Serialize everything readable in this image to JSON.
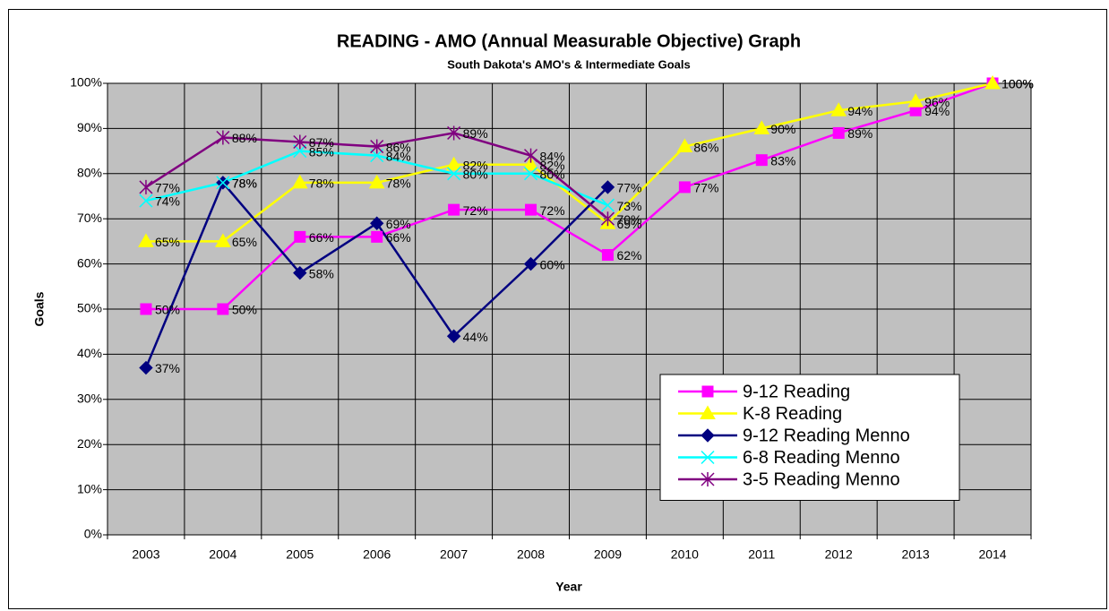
{
  "chart_data": {
    "type": "line",
    "title": "READING - AMO (Annual Measurable Objective) Graph",
    "subtitle": "South Dakota's AMO's & Intermediate Goals",
    "x_label": "Year",
    "y_label": "Goals",
    "categories": [
      "2003",
      "2004",
      "2005",
      "2006",
      "2007",
      "2008",
      "2009",
      "2010",
      "2011",
      "2012",
      "2013",
      "2014"
    ],
    "ylim": [
      0,
      100
    ],
    "yticks": [
      {
        "value": 0,
        "label": "0%"
      },
      {
        "value": 10,
        "label": "10%"
      },
      {
        "value": 20,
        "label": "20%"
      },
      {
        "value": 30,
        "label": "30%"
      },
      {
        "value": 40,
        "label": "40%"
      },
      {
        "value": 50,
        "label": "50%"
      },
      {
        "value": 60,
        "label": "60%"
      },
      {
        "value": 70,
        "label": "70%"
      },
      {
        "value": 80,
        "label": "80%"
      },
      {
        "value": 90,
        "label": "90%"
      },
      {
        "value": 100,
        "label": "100%"
      }
    ],
    "grid": true,
    "legend": "lower right",
    "series": [
      {
        "name": "9-12 Reading",
        "color": "#ff00ff",
        "marker": "square",
        "values": [
          50,
          50,
          66,
          66,
          72,
          72,
          62,
          77,
          83,
          89,
          94,
          100
        ],
        "value_labels": [
          "50%",
          "50%",
          "66%",
          "66%",
          "72%",
          "72%",
          "62%",
          "77%",
          "83%",
          "89%",
          "94%",
          "100%"
        ]
      },
      {
        "name": "K-8 Reading",
        "color": "#ffff00",
        "marker": "triangle",
        "values": [
          65,
          65,
          78,
          78,
          82,
          82,
          69,
          86,
          90,
          94,
          96,
          100
        ],
        "value_labels": [
          "65%",
          "65%",
          "78%",
          "78%",
          "82%",
          "82%",
          "69%",
          "86%",
          "90%",
          "94%",
          "96%",
          "100%"
        ]
      },
      {
        "name": "9-12 Reading Menno",
        "color": "#000080",
        "marker": "diamond",
        "values": [
          37,
          78,
          58,
          69,
          44,
          60,
          77,
          null,
          null,
          null,
          null,
          null
        ],
        "value_labels": [
          "37%",
          "78%",
          "58%",
          "69%",
          "44%",
          "60%",
          "77%",
          null,
          null,
          null,
          null,
          null
        ]
      },
      {
        "name": "6-8 Reading Menno",
        "color": "#00ffff",
        "marker": "x",
        "values": [
          74,
          78,
          85,
          84,
          80,
          80,
          73,
          null,
          null,
          null,
          null,
          null
        ],
        "value_labels": [
          "74%",
          "78%",
          "85%",
          "84%",
          "80%",
          "80%",
          "73%",
          null,
          null,
          null,
          null,
          null
        ]
      },
      {
        "name": "3-5 Reading Menno",
        "color": "#800080",
        "marker": "star",
        "values": [
          77,
          88,
          87,
          86,
          89,
          84,
          70,
          null,
          null,
          null,
          null,
          null
        ],
        "value_labels": [
          "77%",
          "88%",
          "87%",
          "86%",
          "89%",
          "84%",
          "70%",
          null,
          null,
          null,
          null,
          null
        ]
      }
    ]
  }
}
